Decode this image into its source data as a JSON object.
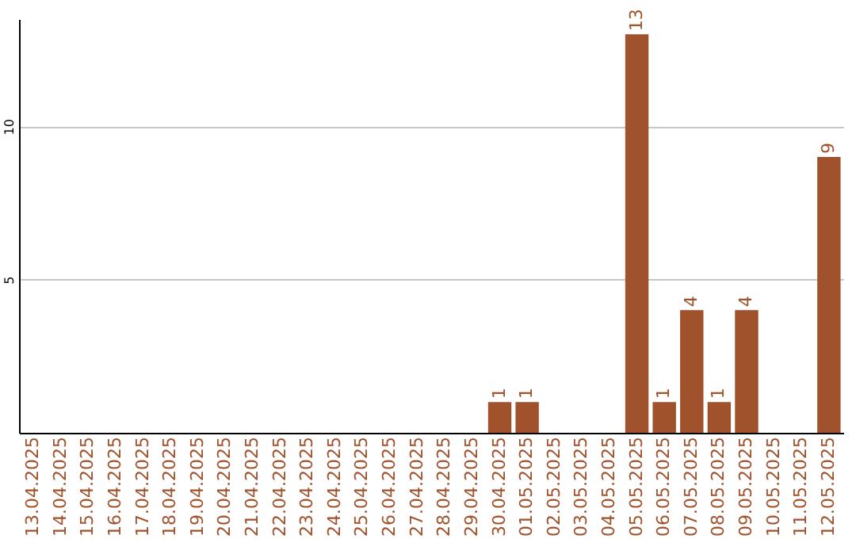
{
  "chart_data": {
    "type": "bar",
    "categories": [
      "13.04.2025",
      "14.04.2025",
      "15.04.2025",
      "16.04.2025",
      "17.04.2025",
      "18.04.2025",
      "19.04.2025",
      "20.04.2025",
      "21.04.2025",
      "22.04.2025",
      "23.04.2025",
      "24.04.2025",
      "25.04.2025",
      "26.04.2025",
      "27.04.2025",
      "28.04.2025",
      "29.04.2025",
      "30.04.2025",
      "01.05.2025",
      "02.05.2025",
      "03.05.2025",
      "04.05.2025",
      "05.05.2025",
      "06.05.2025",
      "07.05.2025",
      "08.05.2025",
      "09.05.2025",
      "10.05.2025",
      "11.05.2025",
      "12.05.2025"
    ],
    "values": [
      null,
      null,
      null,
      null,
      null,
      null,
      null,
      null,
      null,
      null,
      null,
      null,
      null,
      null,
      null,
      null,
      null,
      1,
      1,
      null,
      null,
      null,
      13,
      1,
      4,
      1,
      4,
      null,
      null,
      9
    ],
    "color": "#a0522d",
    "ylim": [
      0,
      13.5
    ],
    "yticks": [
      5,
      10
    ],
    "grid": "y",
    "data_labels": true
  }
}
